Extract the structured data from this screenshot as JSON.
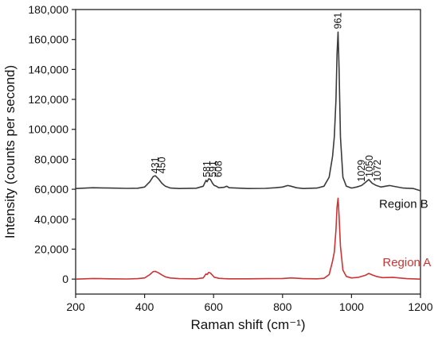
{
  "chart_data": {
    "type": "line",
    "xlabel": "Raman shift (cm⁻¹)",
    "ylabel": "Intensity (counts per second)",
    "xlim": [
      200,
      1200
    ],
    "ylim": [
      -10000,
      180000
    ],
    "x_ticks": [
      200,
      400,
      600,
      800,
      1000,
      1200
    ],
    "x_tick_labels": [
      "200",
      "400",
      "600",
      "800",
      "1000",
      "1200"
    ],
    "y_ticks": [
      0,
      20000,
      40000,
      60000,
      80000,
      100000,
      120000,
      140000,
      160000,
      180000
    ],
    "y_tick_labels": [
      "0",
      "20,000",
      "40,000",
      "60,000",
      "80,000",
      "100,000",
      "120,000",
      "140,000",
      "160,000",
      "180,000"
    ],
    "grid": false,
    "series": [
      {
        "name": "Region B",
        "color": "#3a3a3a",
        "x": [
          200,
          250,
          300,
          350,
          380,
          400,
          415,
          425,
          431,
          440,
          450,
          460,
          475,
          500,
          550,
          570,
          578,
          581,
          586,
          591,
          597,
          602,
          608,
          615,
          630,
          638,
          645,
          700,
          750,
          780,
          800,
          815,
          825,
          840,
          860,
          900,
          920,
          935,
          945,
          950,
          955,
          958,
          961,
          964,
          968,
          975,
          985,
          1000,
          1015,
          1029,
          1040,
          1050,
          1060,
          1072,
          1085,
          1110,
          1150,
          1180,
          1200
        ],
        "y": [
          60500,
          61000,
          60800,
          60600,
          60700,
          61500,
          65000,
          68500,
          69000,
          67000,
          64000,
          62000,
          60800,
          60500,
          60700,
          62000,
          66000,
          65000,
          67000,
          66500,
          64000,
          62500,
          62000,
          61000,
          61300,
          62000,
          61000,
          60500,
          60600,
          61000,
          61500,
          62500,
          62000,
          61000,
          60500,
          60800,
          62000,
          68000,
          82000,
          95000,
          120000,
          150000,
          165000,
          140000,
          95000,
          68000,
          62000,
          60800,
          61500,
          62500,
          64500,
          66500,
          64000,
          62500,
          61500,
          62500,
          60800,
          60500,
          59000
        ]
      },
      {
        "name": "Region A",
        "color": "#cc3333",
        "x": [
          200,
          250,
          300,
          350,
          380,
          400,
          415,
          425,
          431,
          440,
          450,
          460,
          475,
          500,
          550,
          570,
          578,
          581,
          586,
          591,
          597,
          602,
          608,
          615,
          630,
          645,
          700,
          750,
          800,
          825,
          860,
          900,
          920,
          935,
          945,
          950,
          955,
          958,
          961,
          964,
          968,
          975,
          985,
          1000,
          1020,
          1040,
          1050,
          1060,
          1072,
          1090,
          1120,
          1160,
          1200
        ],
        "y": [
          0,
          400,
          200,
          100,
          300,
          800,
          3000,
          5000,
          5200,
          4200,
          2800,
          1500,
          700,
          300,
          200,
          800,
          3500,
          3000,
          4500,
          4000,
          2500,
          1200,
          1000,
          500,
          300,
          200,
          200,
          300,
          400,
          800,
          300,
          200,
          500,
          3000,
          12000,
          18000,
          33000,
          48000,
          54000,
          42000,
          22000,
          6000,
          1800,
          800,
          1200,
          2500,
          3800,
          2800,
          1800,
          1000,
          1200,
          300,
          0
        ]
      }
    ],
    "series_labels": [
      "Region B",
      "Region A"
    ],
    "annotations": [
      {
        "text": "431",
        "x": 431,
        "y": 70500
      },
      {
        "text": "450",
        "x": 451,
        "y": 70500
      },
      {
        "text": "581",
        "x": 581,
        "y": 68000
      },
      {
        "text": "591",
        "x": 598,
        "y": 68000
      },
      {
        "text": "608",
        "x": 614,
        "y": 68000
      },
      {
        "text": "961",
        "x": 961,
        "y": 167000
      },
      {
        "text": "1029",
        "x": 1029,
        "y": 65000
      },
      {
        "text": "1050",
        "x": 1052,
        "y": 68000
      },
      {
        "text": "1072",
        "x": 1075,
        "y": 65000
      }
    ]
  }
}
